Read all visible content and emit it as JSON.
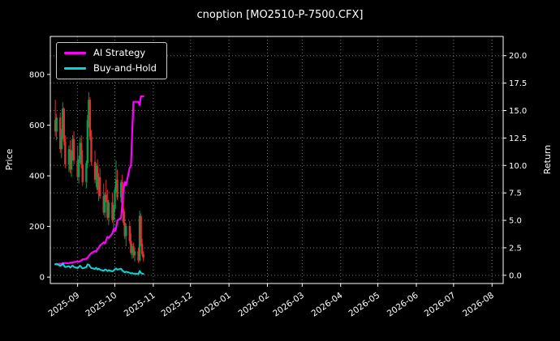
{
  "title": "cnoption [MO2510-P-7500.CFX]",
  "chart_data": {
    "type": "candlestick+line",
    "title": "cnoption [MO2510-P-7500.CFX]",
    "grid": {
      "visible": true,
      "style": "dotted",
      "color": "rgba(255,255,255,0.45)"
    },
    "background_color": "#000000",
    "text_color": "#ffffff",
    "x_axis": {
      "tick_labels": [
        "2025-09",
        "2025-10",
        "2025-11",
        "2025-12",
        "2026-01",
        "2026-02",
        "2026-03",
        "2026-04",
        "2026-05",
        "2026-06",
        "2026-07",
        "2026-08"
      ],
      "lim": [
        "2025-08-10",
        "2026-08-10"
      ]
    },
    "left_axis": {
      "label": "Price",
      "ticks": [
        0,
        200,
        400,
        600,
        800
      ],
      "lim": [
        -25,
        950
      ]
    },
    "right_axis": {
      "label": "Return",
      "ticks": [
        0,
        2.5,
        5,
        7.5,
        10,
        12.5,
        15,
        17.5,
        20
      ],
      "lim": [
        -0.75,
        21.75
      ],
      "decimals": 1
    },
    "candles": {
      "up_color": "#00a050",
      "down_color": "#e03030",
      "dates": [
        "2025-08-14",
        "2025-08-15",
        "2025-08-18",
        "2025-08-19",
        "2025-08-20",
        "2025-08-21",
        "2025-08-22",
        "2025-08-25",
        "2025-08-26",
        "2025-08-27",
        "2025-08-28",
        "2025-08-29",
        "2025-09-01",
        "2025-09-02",
        "2025-09-03",
        "2025-09-04",
        "2025-09-05",
        "2025-09-08",
        "2025-09-09",
        "2025-09-10",
        "2025-09-11",
        "2025-09-12",
        "2025-09-15",
        "2025-09-16",
        "2025-09-17",
        "2025-09-18",
        "2025-09-19",
        "2025-09-22",
        "2025-09-23",
        "2025-09-24",
        "2025-09-25",
        "2025-09-26",
        "2025-09-29",
        "2025-09-30",
        "2025-10-01",
        "2025-10-02",
        "2025-10-03",
        "2025-10-06",
        "2025-10-07",
        "2025-10-08",
        "2025-10-09",
        "2025-10-10",
        "2025-10-13",
        "2025-10-14",
        "2025-10-15",
        "2025-10-16",
        "2025-10-17",
        "2025-10-20",
        "2025-10-21",
        "2025-10-22",
        "2025-10-23",
        "2025-10-24"
      ],
      "ohlc": [
        [
          620,
          700,
          555,
          575
        ],
        [
          575,
          645,
          540,
          630
        ],
        [
          630,
          650,
          490,
          505
        ],
        [
          505,
          585,
          470,
          560
        ],
        [
          560,
          690,
          545,
          665
        ],
        [
          665,
          670,
          520,
          535
        ],
        [
          535,
          560,
          430,
          445
        ],
        [
          445,
          520,
          415,
          505
        ],
        [
          505,
          540,
          410,
          425
        ],
        [
          425,
          500,
          395,
          480
        ],
        [
          480,
          560,
          460,
          545
        ],
        [
          545,
          575,
          445,
          460
        ],
        [
          460,
          520,
          380,
          395
        ],
        [
          395,
          480,
          370,
          465
        ],
        [
          465,
          550,
          450,
          530
        ],
        [
          530,
          560,
          430,
          445
        ],
        [
          445,
          500,
          360,
          375
        ],
        [
          375,
          460,
          350,
          450
        ],
        [
          450,
          640,
          430,
          620
        ],
        [
          620,
          730,
          590,
          700
        ],
        [
          700,
          710,
          540,
          555
        ],
        [
          555,
          580,
          440,
          455
        ],
        [
          455,
          500,
          370,
          385
        ],
        [
          385,
          450,
          355,
          440
        ],
        [
          440,
          465,
          330,
          345
        ],
        [
          345,
          410,
          300,
          395
        ],
        [
          395,
          430,
          310,
          320
        ],
        [
          320,
          370,
          245,
          255
        ],
        [
          255,
          335,
          235,
          325
        ],
        [
          325,
          385,
          295,
          305
        ],
        [
          305,
          345,
          225,
          235
        ],
        [
          235,
          305,
          205,
          295
        ],
        [
          295,
          335,
          215,
          225
        ],
        [
          225,
          285,
          175,
          270
        ],
        [
          270,
          355,
          260,
          345
        ],
        [
          345,
          460,
          335,
          385
        ],
        [
          385,
          425,
          305,
          315
        ],
        [
          315,
          385,
          295,
          375
        ],
        [
          375,
          405,
          255,
          270
        ],
        [
          270,
          315,
          205,
          215
        ],
        [
          215,
          260,
          150,
          162
        ],
        [
          162,
          212,
          122,
          202
        ],
        [
          202,
          222,
          132,
          142
        ],
        [
          142,
          172,
          88,
          96
        ],
        [
          96,
          132,
          72,
          122
        ],
        [
          122,
          136,
          76,
          86
        ],
        [
          86,
          112,
          62,
          102
        ],
        [
          102,
          116,
          56,
          66
        ],
        [
          66,
          262,
          60,
          242
        ],
        [
          242,
          252,
          122,
          132
        ],
        [
          132,
          152,
          82,
          92
        ],
        [
          92,
          102,
          62,
          76
        ]
      ]
    },
    "series": [
      {
        "name": "AI Strategy",
        "color": "#ff00ff",
        "axis": "right",
        "line_width": 2.2,
        "values": [
          1.0,
          1.0,
          1.05,
          1.02,
          1.1,
          1.08,
          1.12,
          1.1,
          1.15,
          1.12,
          1.18,
          1.2,
          1.25,
          1.22,
          1.3,
          1.35,
          1.45,
          1.5,
          1.6,
          1.75,
          1.9,
          2.0,
          2.2,
          2.15,
          2.4,
          2.5,
          2.7,
          3.0,
          2.9,
          3.2,
          3.5,
          3.4,
          3.8,
          4.2,
          4.0,
          4.3,
          5.0,
          5.2,
          6.5,
          7.8,
          8.5,
          8.2,
          9.8,
          10.0,
          13.0,
          15.8,
          15.8,
          15.8,
          15.5,
          16.3,
          16.3,
          16.3
        ]
      },
      {
        "name": "Buy-and-Hold",
        "color": "#00d9d9",
        "axis": "right",
        "line_width": 2.0,
        "values": [
          1.0,
          1.05,
          0.85,
          0.92,
          1.08,
          0.88,
          0.74,
          0.83,
          0.7,
          0.79,
          0.89,
          0.76,
          0.65,
          0.76,
          0.87,
          0.73,
          0.62,
          0.74,
          1.0,
          0.96,
          0.8,
          0.66,
          0.58,
          0.69,
          0.52,
          0.61,
          0.51,
          0.41,
          0.52,
          0.49,
          0.38,
          0.47,
          0.36,
          0.43,
          0.55,
          0.62,
          0.51,
          0.6,
          0.43,
          0.35,
          0.26,
          0.33,
          0.23,
          0.16,
          0.2,
          0.14,
          0.16,
          0.11,
          0.39,
          0.21,
          0.15,
          0.12
        ]
      }
    ],
    "legend": {
      "position": "upper-left"
    }
  }
}
